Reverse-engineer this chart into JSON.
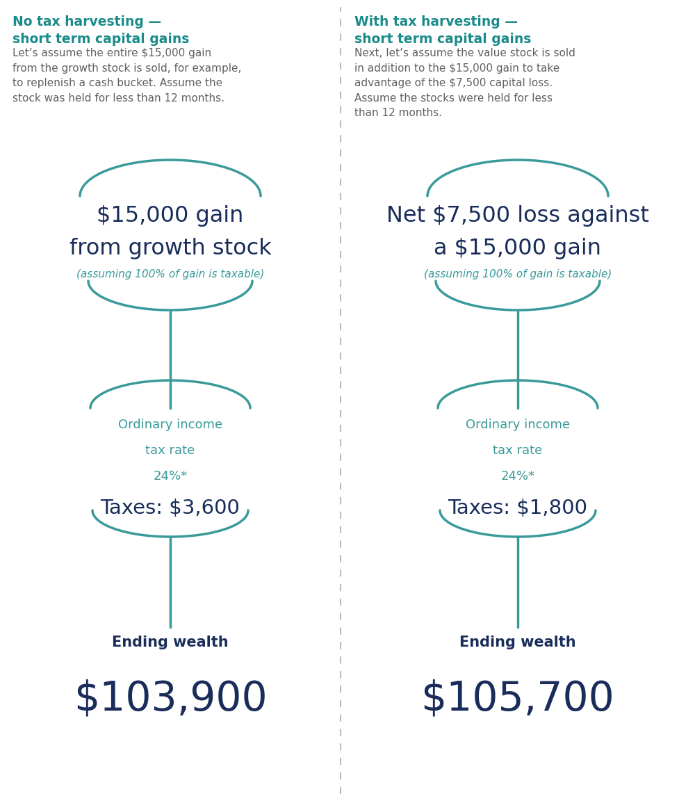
{
  "bg_color": "#ffffff",
  "teal_title": "#1a8a8a",
  "dark_navy": "#1a2d5a",
  "teal_body": "#3a9a9a",
  "gray_text": "#606060",
  "divider_color": "#bbbbbb",
  "left_title": "No tax harvesting —\nshort term capital gains",
  "right_title": "With tax harvesting —\nshort term capital gains",
  "left_desc": "Let’s assume the entire $15,000 gain\nfrom the growth stock is sold, for example,\nto replenish a cash bucket. Assume the\nstock was held for less than 12 months.",
  "right_desc": "Next, let’s assume the value stock is sold\nin addition to the $15,000 gain to take\nadvantage of the $7,500 capital loss.\nAssume the stocks were held for less\nthan 12 months.",
  "left_main_line1": "$15,000 gain",
  "left_main_line2": "from growth stock",
  "left_sub": "(assuming 100% of gain is taxable)",
  "right_main_line1": "Net $7,500 loss against",
  "right_main_line2": "a $15,000 gain",
  "right_sub": "(assuming 100% of gain is taxable)",
  "left_tax_line1": "Ordinary income",
  "left_tax_line2": "tax rate",
  "left_tax_line3": "24%*",
  "left_tax_amount": "Taxes: $3,600",
  "right_tax_line1": "Ordinary income",
  "right_tax_line2": "tax rate",
  "right_tax_line3": "24%*",
  "right_tax_amount": "Taxes: $1,800",
  "left_wealth_label": "Ending wealth",
  "left_wealth_value": "$103,900",
  "right_wealth_label": "Ending wealth",
  "right_wealth_value": "$105,700",
  "fig_width": 10.0,
  "fig_height": 11.52,
  "dpi": 100
}
